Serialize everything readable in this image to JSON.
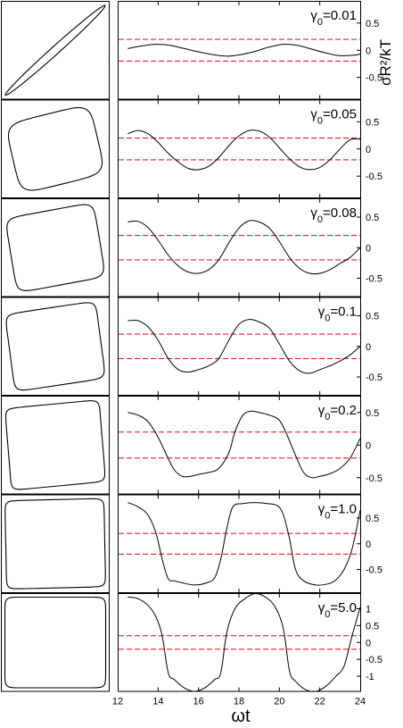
{
  "chart_data": {
    "type": "line",
    "description_x_axis": "shared",
    "xlabel": "ωt",
    "ylabel": "σR²/kT",
    "xlim": [
      12,
      24
    ],
    "x_ticks": [
      "12",
      "14",
      "16",
      "18",
      "20",
      "22",
      "24"
    ],
    "reference_lines": [
      0.2,
      -0.2
    ],
    "reference_line_color": "#e02020",
    "curve_color": "#000000",
    "panels": [
      {
        "label": "γ0=0.01",
        "ylim": [
          -0.9,
          0.9
        ],
        "y_ticks": [
          "0.5",
          "0",
          "-0.5"
        ],
        "y_tick_values": [
          0.5,
          0,
          -0.5
        ],
        "curve": {
          "x": [
            12.5,
            13.2,
            13.9,
            14.6,
            15.3,
            16.0,
            16.7,
            17.4,
            18.1,
            18.8,
            19.5,
            20.2,
            20.9,
            21.6,
            22.3,
            23.0,
            23.7,
            24.0
          ],
          "y": [
            0.03,
            0.08,
            0.11,
            0.09,
            0.03,
            -0.03,
            -0.08,
            -0.11,
            -0.08,
            -0.02,
            0.06,
            0.11,
            0.09,
            0.02,
            -0.05,
            -0.1,
            -0.09,
            -0.07
          ]
        },
        "loop": {
          "shape": "ellipse",
          "tilt": 1.0,
          "squareness": 0.0,
          "width": 0.06
        }
      },
      {
        "label": "γ0=0.05",
        "ylim": [
          -0.9,
          0.9
        ],
        "y_ticks": [
          "0.5",
          "0",
          "-0.5"
        ],
        "y_tick_values": [
          0.5,
          0,
          -0.5
        ],
        "curve": {
          "x": [
            12.5,
            13.0,
            13.5,
            14.0,
            14.5,
            15.0,
            15.5,
            16.0,
            16.5,
            17.0,
            17.5,
            18.0,
            18.5,
            19.0,
            19.5,
            20.0,
            20.5,
            21.0,
            21.5,
            22.0,
            22.5,
            23.0,
            23.5,
            24.0
          ],
          "y": [
            0.28,
            0.34,
            0.28,
            0.12,
            -0.08,
            -0.24,
            -0.36,
            -0.38,
            -0.32,
            -0.16,
            0.06,
            0.24,
            0.34,
            0.33,
            0.22,
            0.02,
            -0.18,
            -0.33,
            -0.38,
            -0.34,
            -0.2,
            0.0,
            0.17,
            0.18
          ]
        },
        "loop": {
          "shape": "loop",
          "tilt": 0.55,
          "squareness": 0.25,
          "width": 0.3
        }
      },
      {
        "label": "γ0=0.08",
        "ylim": [
          -0.8,
          0.8
        ],
        "y_ticks": [
          "0.5",
          "0",
          "-0.5"
        ],
        "y_tick_values": [
          0.5,
          0,
          -0.5
        ],
        "curve": {
          "x": [
            12.5,
            13.0,
            13.5,
            14.0,
            14.5,
            15.0,
            15.5,
            16.0,
            16.5,
            17.0,
            17.5,
            18.0,
            18.5,
            19.0,
            19.5,
            20.0,
            20.5,
            21.0,
            21.5,
            22.0,
            22.5,
            23.0,
            23.5,
            24.0
          ],
          "y": [
            0.42,
            0.43,
            0.33,
            0.12,
            -0.12,
            -0.3,
            -0.4,
            -0.42,
            -0.36,
            -0.2,
            0.08,
            0.32,
            0.44,
            0.42,
            0.32,
            0.1,
            -0.16,
            -0.34,
            -0.42,
            -0.42,
            -0.36,
            -0.26,
            -0.16,
            0.0
          ]
        },
        "loop": {
          "shape": "loop",
          "tilt": 0.4,
          "squareness": 0.45,
          "width": 0.35
        }
      },
      {
        "label": "γ0=0.1",
        "ylim": [
          -0.8,
          0.8
        ],
        "y_ticks": [
          "0.5",
          "0",
          "-0.5"
        ],
        "y_tick_values": [
          0.5,
          0,
          -0.5
        ],
        "curve": {
          "x": [
            12.5,
            13.0,
            13.5,
            14.0,
            14.5,
            15.0,
            15.5,
            16.0,
            16.5,
            17.0,
            17.5,
            18.0,
            18.5,
            19.0,
            19.5,
            20.0,
            20.5,
            21.0,
            21.5,
            22.0,
            22.5,
            23.0,
            23.5,
            24.0
          ],
          "y": [
            0.42,
            0.42,
            0.32,
            0.1,
            -0.2,
            -0.38,
            -0.42,
            -0.38,
            -0.32,
            -0.2,
            0.1,
            0.36,
            0.44,
            0.4,
            0.3,
            0.04,
            -0.24,
            -0.4,
            -0.44,
            -0.38,
            -0.32,
            -0.24,
            -0.14,
            0.0
          ]
        },
        "loop": {
          "shape": "loop",
          "tilt": 0.32,
          "squareness": 0.6,
          "width": 0.35
        }
      },
      {
        "label": "γ0=0.2",
        "ylim": [
          -0.75,
          0.75
        ],
        "y_ticks": [
          "0.5",
          "0",
          "-0.5"
        ],
        "y_tick_values": [
          0.5,
          0,
          -0.5
        ],
        "curve": {
          "x": [
            12.5,
            13.0,
            13.5,
            14.0,
            14.4,
            14.8,
            15.2,
            15.6,
            16.0,
            16.5,
            17.0,
            17.5,
            17.8,
            18.2,
            18.6,
            19.0,
            19.5,
            20.0,
            20.4,
            20.8,
            21.2,
            21.6,
            22.0,
            22.5,
            23.0,
            23.5,
            24.0
          ],
          "y": [
            0.5,
            0.46,
            0.36,
            0.12,
            -0.14,
            -0.38,
            -0.48,
            -0.48,
            -0.45,
            -0.42,
            -0.36,
            -0.12,
            0.2,
            0.46,
            0.52,
            0.5,
            0.46,
            0.38,
            0.14,
            -0.16,
            -0.42,
            -0.5,
            -0.48,
            -0.44,
            -0.36,
            -0.2,
            0.1
          ]
        },
        "loop": {
          "shape": "loop",
          "tilt": 0.2,
          "squareness": 0.8,
          "width": 0.3
        }
      },
      {
        "label": "γ0=1.0",
        "ylim": [
          -0.95,
          0.95
        ],
        "y_ticks": [
          "0.5",
          "0",
          "-0.5"
        ],
        "y_tick_values": [
          0.5,
          0,
          -0.5
        ],
        "curve": {
          "x": [
            12.5,
            13.0,
            13.5,
            13.9,
            14.2,
            14.5,
            14.8,
            15.2,
            15.8,
            16.4,
            16.8,
            17.1,
            17.4,
            17.7,
            18.2,
            18.8,
            19.4,
            19.9,
            20.2,
            20.5,
            20.8,
            21.2,
            21.8,
            22.4,
            22.8,
            23.2,
            23.6,
            24.0
          ],
          "y": [
            0.8,
            0.72,
            0.56,
            0.2,
            -0.3,
            -0.68,
            -0.72,
            -0.76,
            -0.8,
            -0.76,
            -0.66,
            -0.3,
            0.3,
            0.72,
            0.78,
            0.8,
            0.78,
            0.74,
            0.56,
            0.1,
            -0.5,
            -0.72,
            -0.8,
            -0.78,
            -0.7,
            -0.5,
            -0.1,
            0.65
          ]
        },
        "loop": {
          "shape": "loop",
          "tilt": 0.05,
          "squareness": 0.92,
          "width": 0.3
        }
      },
      {
        "label": "γ0=5.0",
        "ylim": [
          -1.45,
          1.45
        ],
        "y_ticks": [
          "1",
          "0.5",
          "0",
          "-0.5",
          "-1"
        ],
        "y_tick_values": [
          1,
          0.5,
          0,
          -0.5,
          -1
        ],
        "curve": {
          "x": [
            12.5,
            13.0,
            13.5,
            13.9,
            14.2,
            14.5,
            14.8,
            15.3,
            15.8,
            16.3,
            16.8,
            17.1,
            17.4,
            17.8,
            18.3,
            18.8,
            19.3,
            19.8,
            20.2,
            20.5,
            20.8,
            21.3,
            21.8,
            22.3,
            22.8,
            23.2,
            23.6,
            24.0
          ],
          "y": [
            1.35,
            1.3,
            1.1,
            0.75,
            0.2,
            -0.9,
            -1.1,
            -1.35,
            -1.45,
            -1.35,
            -1.1,
            -0.9,
            0.3,
            1.0,
            1.3,
            1.45,
            1.35,
            1.05,
            0.4,
            -0.85,
            -1.15,
            -1.4,
            -1.45,
            -1.3,
            -1.0,
            -0.7,
            0.2,
            1.05
          ]
        },
        "loop": {
          "shape": "loop",
          "tilt": 0.0,
          "squareness": 0.97,
          "width": 0.3
        }
      }
    ]
  }
}
